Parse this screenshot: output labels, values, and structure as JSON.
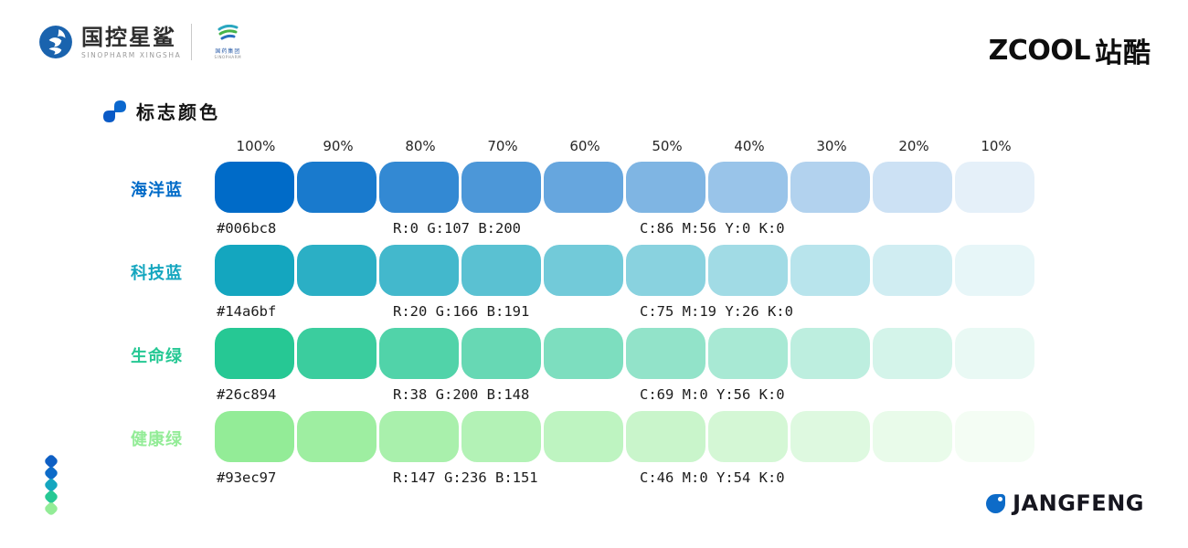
{
  "header": {
    "brand": {
      "name_cn": "国控星鲨",
      "name_en": "SINOPHARM XINGSHA",
      "secondary_cn": "国药集团",
      "secondary_en": "SINOPHARM"
    },
    "zcool": {
      "text_en": "ZCOOL",
      "text_cn": "站酷"
    }
  },
  "section": {
    "title": "标志颜色"
  },
  "palette": {
    "percent_labels": [
      "100%",
      "90%",
      "80%",
      "70%",
      "60%",
      "50%",
      "40%",
      "30%",
      "20%",
      "10%"
    ],
    "rows": [
      {
        "key": "ocean-blue",
        "label": "海洋蓝",
        "hex": "#006bc8",
        "rgb_values": [
          0,
          107,
          200
        ],
        "rgb": "R:0 G:107 B:200",
        "cmyk": "C:86 M:56 Y:0 K:0"
      },
      {
        "key": "tech-blue",
        "label": "科技蓝",
        "hex": "#14a6bf",
        "rgb_values": [
          20,
          166,
          191
        ],
        "rgb": "R:20 G:166 B:191",
        "cmyk": "C:75 M:19 Y:26 K:0"
      },
      {
        "key": "life-green",
        "label": "生命绿",
        "hex": "#26c894",
        "rgb_values": [
          38,
          200,
          148
        ],
        "rgb": "R:38 G:200 B:148",
        "cmyk": "C:69 M:0 Y:56 K:0"
      },
      {
        "key": "health-green",
        "label": "健康绿",
        "hex": "#93ec97",
        "rgb_values": [
          147,
          236,
          151
        ],
        "rgb": "R:147 G:236 B:151",
        "cmyk": "C:46 M:0 Y:54 K:0"
      }
    ]
  },
  "footer": {
    "jangfeng_label": "JANGFENG",
    "jangfeng_icon_color": "#0d6bc8",
    "diamond_colors": [
      "#0e5fc4",
      "#0d6bc8",
      "#14a6bf",
      "#26c894",
      "#93ec97"
    ]
  },
  "colors": {
    "accent_blue": "#0b65cb",
    "logo_circle_blue": "#1a63ae",
    "text_dark": "#141414",
    "text_gray": "#9a9a9a"
  }
}
